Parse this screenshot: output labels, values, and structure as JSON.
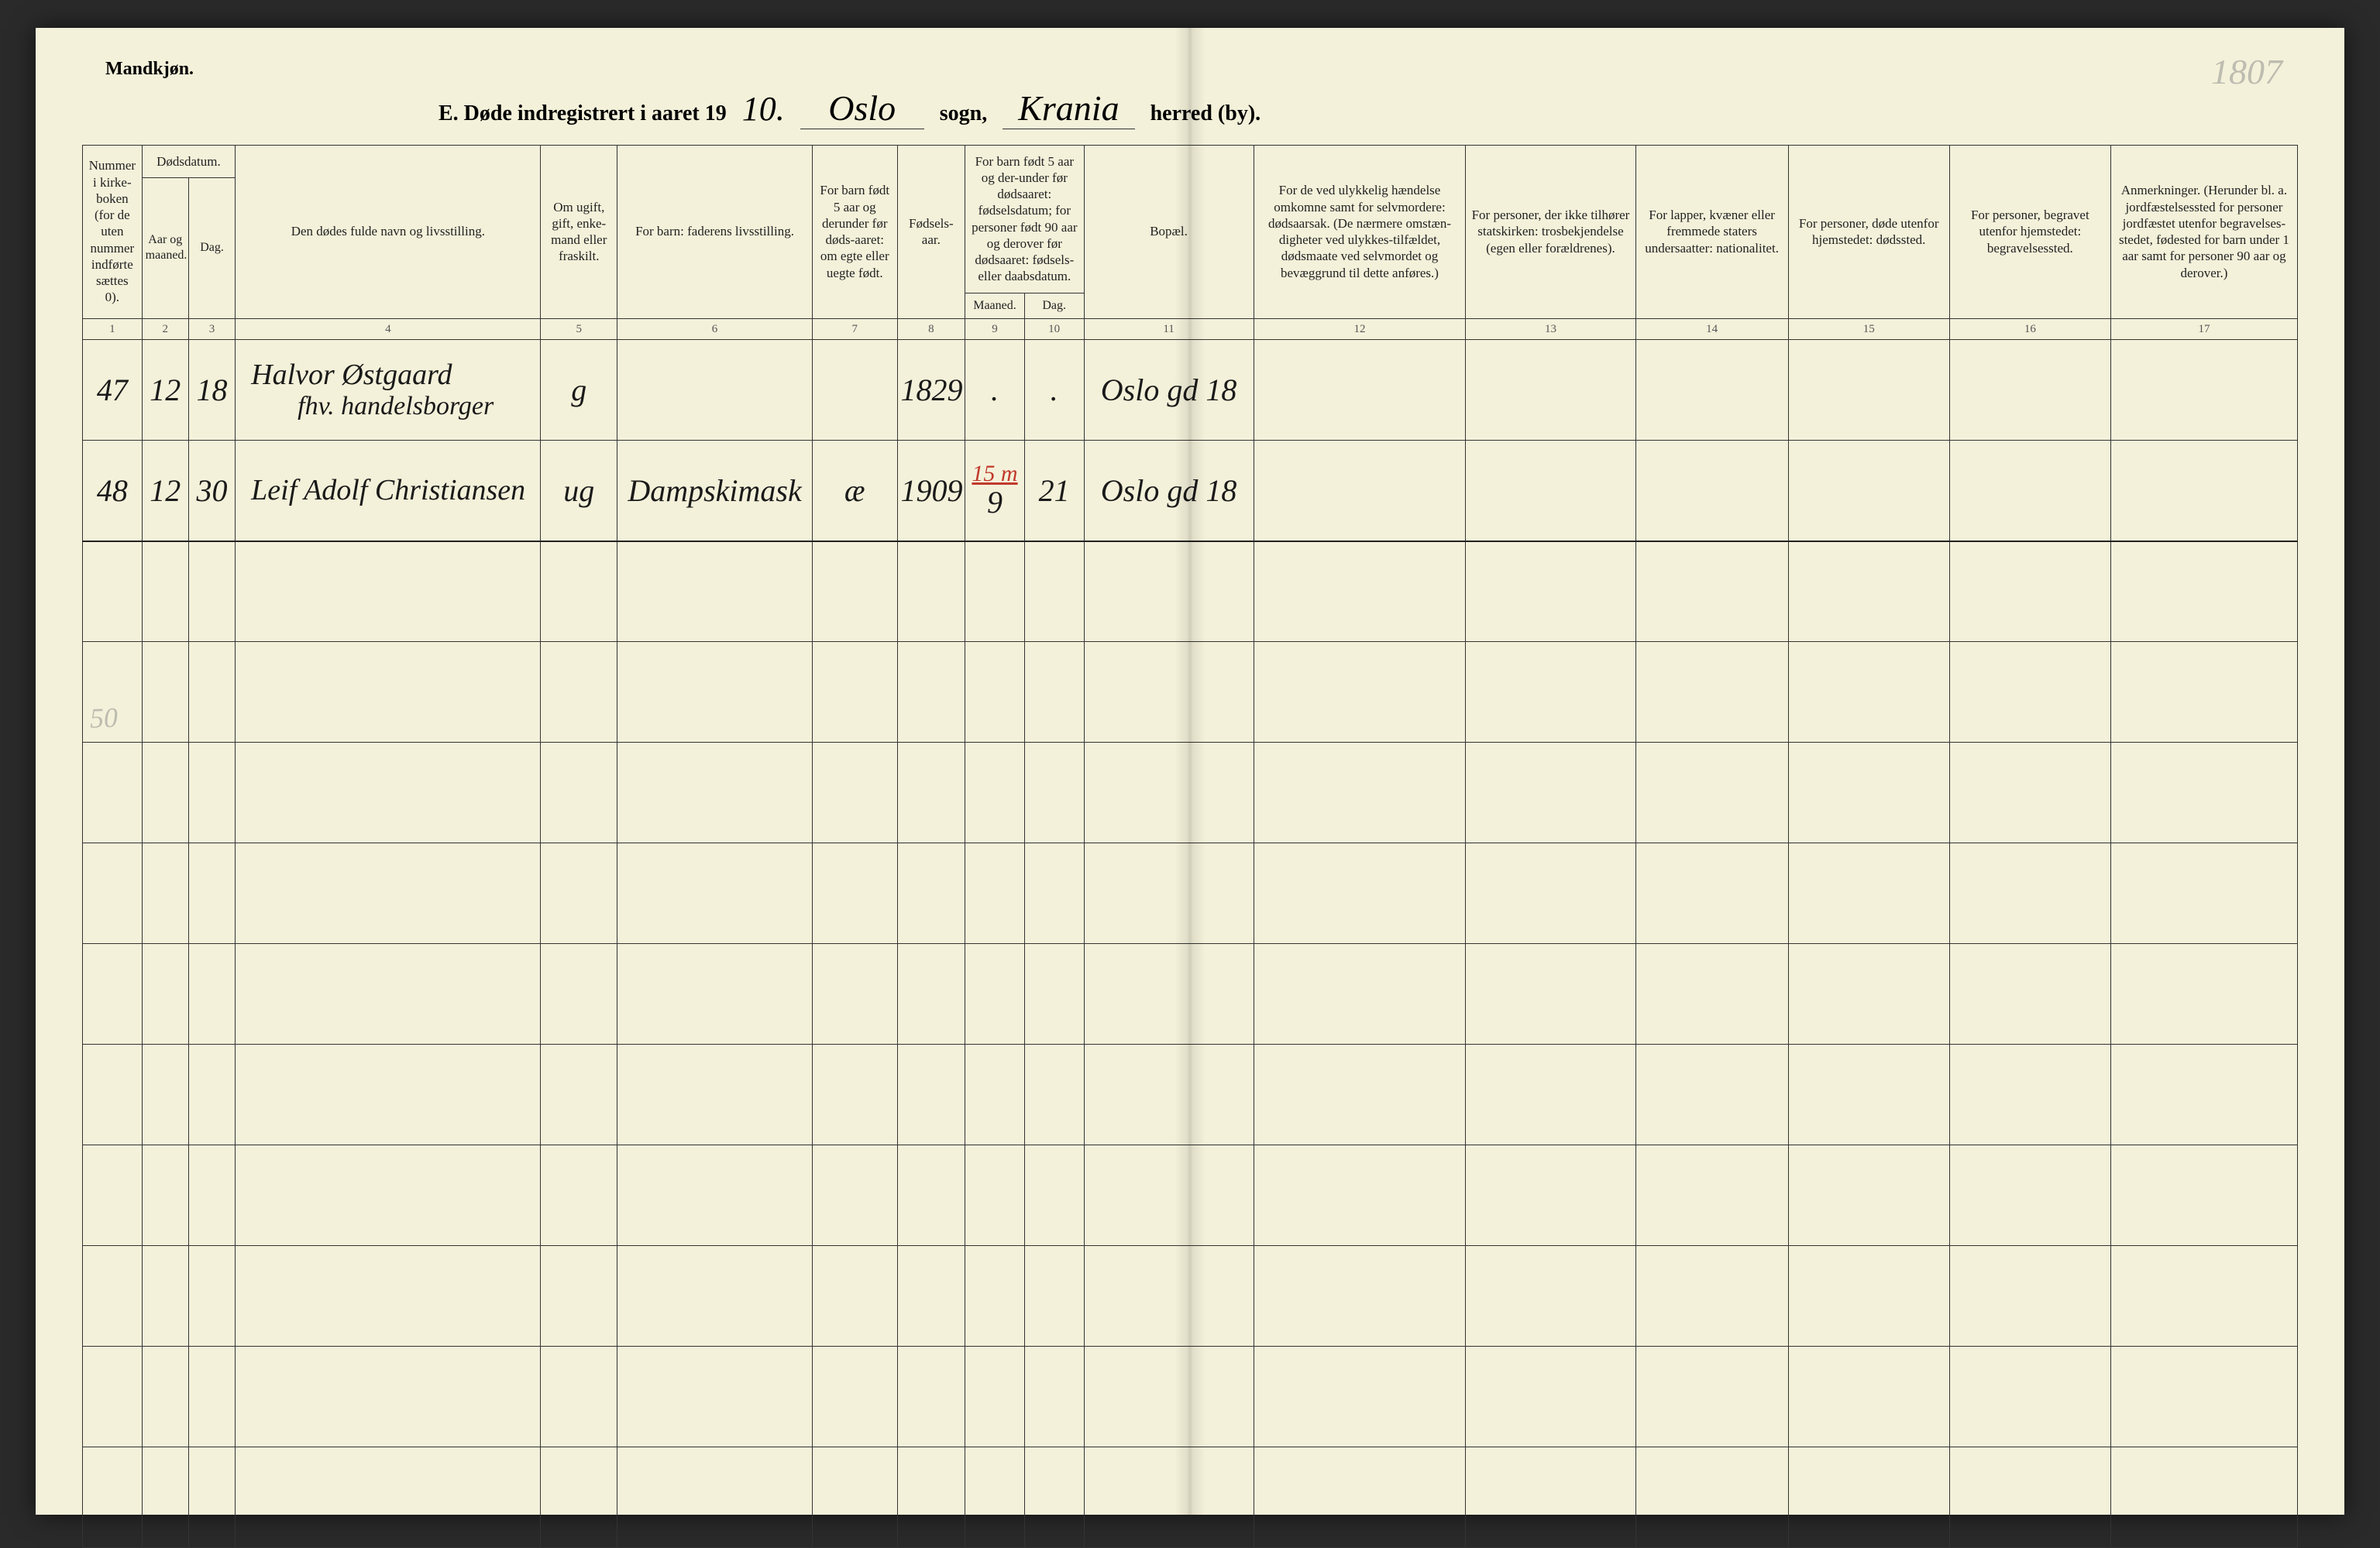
{
  "background_color": "#f4f1da",
  "ink_color": "#1a1a1a",
  "red_ink_color": "#c0392b",
  "rule_color": "#333333",
  "top_left_label": "Mandkjøn.",
  "corner_note": "1807",
  "margin_note": "50",
  "title": {
    "prefix": "E.  Døde indregistrert i aaret 19",
    "year_suffix": "10.",
    "sogn_value": "Oslo",
    "sogn_label": "sogn,",
    "herred_value": "Krania",
    "herred_label": "herred (by)."
  },
  "headers": {
    "col1": "Nummer i kirke-boken (for de uten nummer indførte sættes 0).",
    "dodsdatum": "Dødsdatum.",
    "col2": "Aar og maaned.",
    "col3": "Dag.",
    "col4": "Den dødes fulde navn og livsstilling.",
    "col5": "Om ugift, gift, enke-mand eller fraskilt.",
    "col6": "For barn: faderens livsstilling.",
    "col7": "For barn født 5 aar og derunder før døds-aaret: om egte eller uegte født.",
    "col8": "Fødsels-aar.",
    "col9_10_top": "For barn født 5 aar og der-under før dødsaaret: fødselsdatum; for personer født 90 aar og derover før dødsaaret: fødsels- eller daabsdatum.",
    "col9": "Maaned.",
    "col10": "Dag.",
    "col11": "Bopæl.",
    "col12": "For de ved ulykkelig hændelse omkomne samt for selvmordere: dødsaarsak. (De nærmere omstæn-digheter ved ulykkes-tilfældet, dødsmaate ved selvmordet og bevæggrund til dette anføres.)",
    "col13": "For personer, der ikke tilhører statskirken: trosbekjendelse (egen eller forældrenes).",
    "col14": "For lapper, kvæner eller fremmede staters undersaatter: nationalitet.",
    "col15": "For personer, døde utenfor hjemstedet: dødssted.",
    "col16": "For personer, begravet utenfor hjemstedet: begravelsessted.",
    "col17": "Anmerkninger. (Herunder bl. a. jordfæstelsessted for personer jordfæstet utenfor begravelses-stedet, fødested for barn under 1 aar samt for personer 90 aar og derover.)"
  },
  "colnums": [
    "1",
    "2",
    "3",
    "4",
    "5",
    "6",
    "7",
    "8",
    "9",
    "10",
    "11",
    "12",
    "13",
    "14",
    "15",
    "16",
    "17"
  ],
  "rows": [
    {
      "c1": "47",
      "c2": "12",
      "c3": "18",
      "c4_line1": "Halvor Østgaard",
      "c4_line2": "fhv. handelsborger",
      "c5": "g",
      "c6": "",
      "c7": "",
      "c8": "1829",
      "c9": ".",
      "c10": ".",
      "c11": "Oslo gd 18",
      "c12": "",
      "c13": "",
      "c14": "",
      "c15": "",
      "c16": "",
      "c17": "",
      "red_note": ""
    },
    {
      "c1": "48",
      "c2": "12",
      "c3": "30",
      "c4_line1": "Leif Adolf Christiansen",
      "c4_line2": "",
      "c5": "ug",
      "c6": "Dampskimask",
      "c7": "æ",
      "c8": "1909",
      "c9": "9",
      "c10": "21",
      "c11": "Oslo gd 18",
      "c12": "",
      "c13": "",
      "c14": "",
      "c15": "",
      "c16": "",
      "c17": "",
      "red_note": "15 m"
    }
  ],
  "blank_row_count": 10
}
